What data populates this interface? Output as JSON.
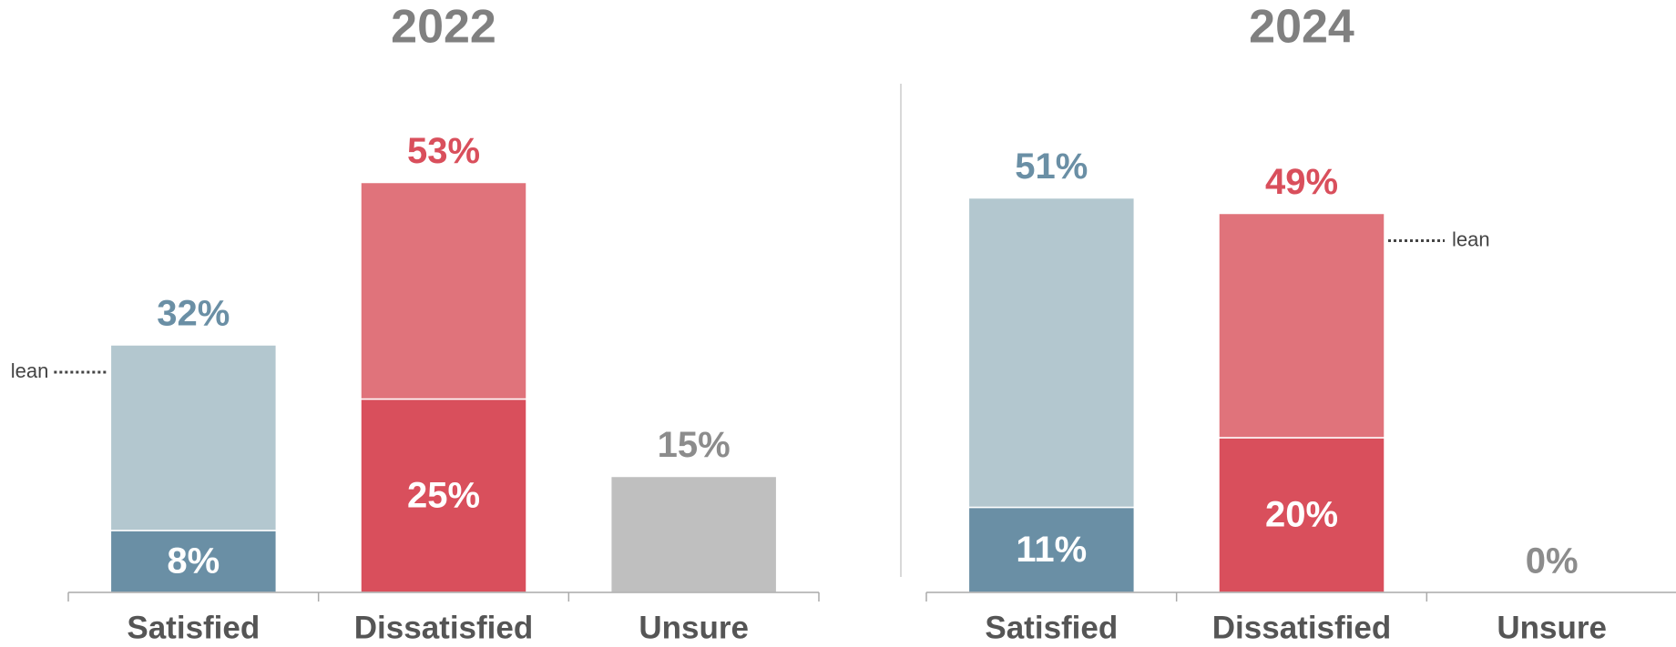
{
  "chart_data": [
    {
      "type": "stacked_bar",
      "title": "2022",
      "categories": [
        "Satisfied",
        "Dissatisfied",
        "Unsure"
      ],
      "series": [
        {
          "colors": [
            "#6a8fa5",
            "#d94f5c",
            "#bfbfbf"
          ],
          "values": [
            8,
            25,
            15
          ],
          "value_labels": [
            "8%",
            "25%",
            "15%"
          ]
        },
        {
          "colors": [
            "#b3c7cf",
            "#e0737b",
            null
          ],
          "values": [
            24,
            28,
            null
          ]
        }
      ],
      "totals": [
        32,
        53,
        null
      ],
      "total_labels": [
        "32%",
        "53%",
        null
      ],
      "label_colors": [
        "#6a8fa5",
        "#d94f5c",
        "#8c8c8c"
      ],
      "annotation": {
        "text": "lean",
        "category": 0,
        "side": "left"
      }
    },
    {
      "type": "stacked_bar",
      "title": "2024",
      "categories": [
        "Satisfied",
        "Dissatisfied",
        "Unsure"
      ],
      "series": [
        {
          "colors": [
            "#6a8fa5",
            "#d94f5c",
            "#bfbfbf"
          ],
          "values": [
            11,
            20,
            0
          ],
          "value_labels": [
            "11%",
            "20%",
            "0%"
          ]
        },
        {
          "colors": [
            "#b3c7cf",
            "#e0737b",
            null
          ],
          "values": [
            40,
            29,
            null
          ]
        }
      ],
      "totals": [
        51,
        49,
        null
      ],
      "total_labels": [
        "51%",
        "49%",
        null
      ],
      "label_colors": [
        "#6a8fa5",
        "#d94f5c",
        "#8c8c8c"
      ],
      "annotation": {
        "text": "lean",
        "category": 1,
        "side": "right"
      }
    }
  ]
}
